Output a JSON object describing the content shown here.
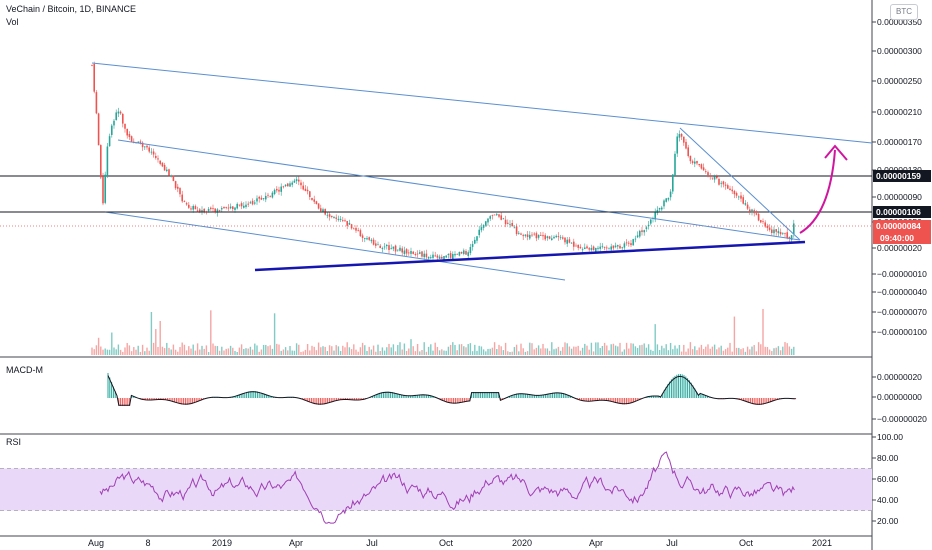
{
  "header": {
    "title": "VeChain / Bitcoin, 1D, BINANCE",
    "volume_label": "Vol",
    "currency_badge": "BTC"
  },
  "price_pane": {
    "y_ticks": [
      "0.00000350",
      "0.00000300",
      "0.00000250",
      "0.00000210",
      "0.00000170",
      "0.00000130",
      "0.00000090",
      "0.00000050",
      "0.00000020",
      "−0.00000010",
      "−0.00000040",
      "−0.00000070",
      "−0.00000100"
    ],
    "level_labels": [
      "0.00000159",
      "0.00000106"
    ],
    "current_price": "0.00000084",
    "countdown": "09:40:00",
    "horizontal_levels": [
      1.59e-06,
      1.06e-06
    ],
    "colors": {
      "up": "#26a69a",
      "down": "#ef5350",
      "trend": "#5b8fd0",
      "support": "#1515b0",
      "arrow": "#d0169e",
      "level": "#131722",
      "price_tag": "#ef5350"
    }
  },
  "macd_pane": {
    "label": "MACD-M",
    "y_ticks": [
      "0.00000020",
      "0.00000000",
      "−0.00000020"
    ]
  },
  "rsi_pane": {
    "label": "RSI",
    "y_ticks": [
      "100.00",
      "80.00",
      "60.00",
      "40.00",
      "20.00"
    ],
    "band": [
      30,
      70
    ],
    "band_color": "#e9d8f7",
    "line_color": "#a03fb4"
  },
  "x_axis": {
    "ticks": [
      "Aug",
      "8",
      "2019",
      "Apr",
      "Jul",
      "Oct",
      "2020",
      "Apr",
      "Jul",
      "Oct",
      "2021"
    ]
  },
  "chart_data": {
    "type": "candlestick",
    "title": "VeChain / Bitcoin, 1D, BINANCE",
    "approx_close_path": [
      {
        "x": "2018-08-01",
        "y": 3.3e-06
      },
      {
        "x": "2018-08-10",
        "y": 1e-06
      },
      {
        "x": "2018-08-20",
        "y": 2.4e-06
      },
      {
        "x": "2018-10-01",
        "y": 1.8e-06
      },
      {
        "x": "2018-11-10",
        "y": 1e-06
      },
      {
        "x": "2019-01-01",
        "y": 9e-07
      },
      {
        "x": "2019-04-01",
        "y": 1.3e-06
      },
      {
        "x": "2019-06-01",
        "y": 7e-07
      },
      {
        "x": "2019-09-01",
        "y": 3e-07
      },
      {
        "x": "2019-11-10",
        "y": 9e-07
      },
      {
        "x": "2020-02-01",
        "y": 6e-07
      },
      {
        "x": "2020-03-15",
        "y": 4e-07
      },
      {
        "x": "2020-06-15",
        "y": 8e-07
      },
      {
        "x": "2020-07-10",
        "y": 2.2e-06
      },
      {
        "x": "2020-09-01",
        "y": 1.5e-06
      },
      {
        "x": "2020-11-10",
        "y": 6e-07
      },
      {
        "x": "2020-11-22",
        "y": 8.4e-07
      }
    ],
    "rsi_range": [
      20,
      90
    ],
    "rsi_band": [
      30,
      70
    ]
  }
}
